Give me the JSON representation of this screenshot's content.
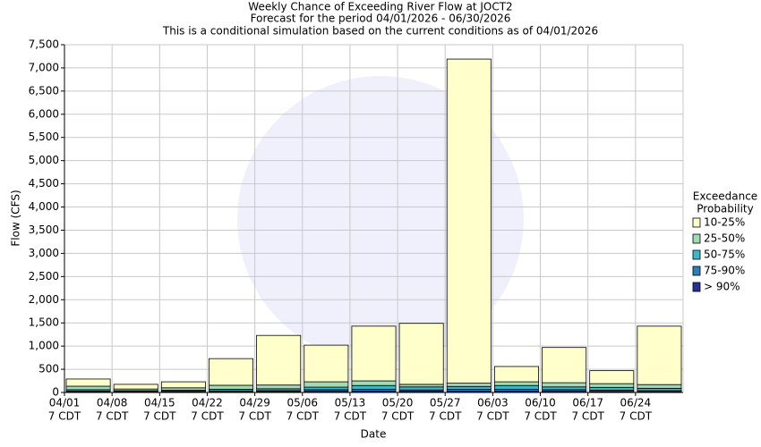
{
  "chart_data": {
    "type": "stacked_bar",
    "title": "Weekly Chance of Exceeding River Flow at JOCT2",
    "subtitle": "Forecast for the period 04/01/2026 - 06/30/2026",
    "note": "This is a conditional simulation based on the current conditions as of 04/01/2026",
    "x_label": "Date",
    "y_label": "Flow (CFS)",
    "legend_title": [
      "Exceedance",
      "Probability"
    ],
    "categories": [
      "04/01",
      "04/08",
      "04/15",
      "04/22",
      "04/29",
      "05/06",
      "05/13",
      "05/20",
      "05/27",
      "06/03",
      "06/10",
      "06/17",
      "06/24"
    ],
    "category_sublabels": [
      "7 CDT",
      "7 CDT",
      "7 CDT",
      "7 CDT",
      "7 CDT",
      "7 CDT",
      "7 CDT",
      "7 CDT",
      "7 CDT",
      "7 CDT",
      "7 CDT",
      "7 CDT",
      "7 CDT"
    ],
    "series": [
      {
        "name": "> 90%",
        "color": "#253494",
        "values": [
          15,
          10,
          10,
          15,
          20,
          25,
          30,
          25,
          30,
          30,
          25,
          20,
          15
        ]
      },
      {
        "name": "75-90%",
        "color": "#2c7fb8",
        "values": [
          15,
          10,
          15,
          20,
          20,
          35,
          40,
          30,
          40,
          40,
          35,
          30,
          25
        ]
      },
      {
        "name": "50-75%",
        "color": "#41b6c4",
        "values": [
          30,
          20,
          25,
          35,
          40,
          55,
          80,
          65,
          60,
          80,
          60,
          60,
          50
        ]
      },
      {
        "name": "25-50%",
        "color": "#a1dab4",
        "values": [
          75,
          35,
          50,
          85,
          80,
          115,
          100,
          55,
          70,
          80,
          90,
          80,
          80
        ]
      },
      {
        "name": "10-25%",
        "color": "#ffffcc",
        "values": [
          155,
          100,
          130,
          575,
          1070,
          790,
          1180,
          1315,
          6990,
          330,
          760,
          280,
          1260
        ]
      }
    ],
    "ylim": [
      0,
      7500
    ],
    "yticks": [
      0,
      500,
      {
        "value": 1000,
        "label": "1,000"
      },
      {
        "value": 1500,
        "label": "1,500"
      },
      {
        "value": 2000,
        "label": "2,000"
      },
      {
        "value": 2500,
        "label": "2,500"
      },
      {
        "value": 3000,
        "label": "3,000"
      },
      {
        "value": 3500,
        "label": "3,500"
      },
      {
        "value": 4000,
        "label": "4,000"
      },
      {
        "value": 4500,
        "label": "4,500"
      },
      {
        "value": 5000,
        "label": "5,000"
      },
      {
        "value": 5500,
        "label": "5,500"
      },
      {
        "value": 6000,
        "label": "6,000"
      },
      {
        "value": 6500,
        "label": "6,500"
      },
      {
        "value": 7000,
        "label": "7,000"
      },
      {
        "value": 7500,
        "label": "7,500"
      }
    ],
    "grid": true
  }
}
